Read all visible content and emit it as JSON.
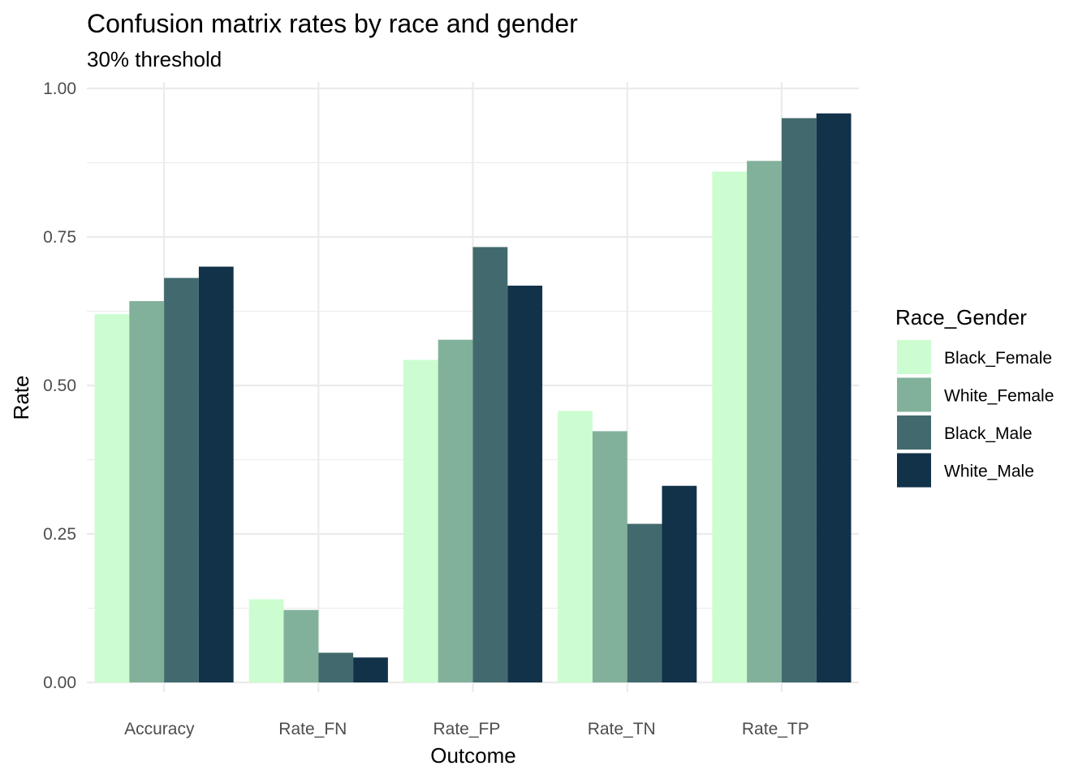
{
  "chart_data": {
    "type": "bar",
    "title": "Confusion matrix rates by race and gender",
    "subtitle": "30% threshold",
    "xlabel": "Outcome",
    "ylabel": "Rate",
    "ylim": [
      0,
      1
    ],
    "yticks": [
      "0.00",
      "0.25",
      "0.50",
      "0.75",
      "1.00"
    ],
    "ytick_values": [
      0,
      0.25,
      0.5,
      0.75,
      1.0
    ],
    "grid": true,
    "legend_title": "Race_Gender",
    "legend_position": "right",
    "categories": [
      "Accuracy",
      "Rate_FN",
      "Rate_FP",
      "Rate_TN",
      "Rate_TP"
    ],
    "series": [
      {
        "name": "Black_Female",
        "color": "#ccfdd0",
        "values": [
          0.62,
          0.14,
          0.543,
          0.457,
          0.86
        ]
      },
      {
        "name": "White_Female",
        "color": "#82b19b",
        "values": [
          0.642,
          0.122,
          0.577,
          0.423,
          0.878
        ]
      },
      {
        "name": "Black_Male",
        "color": "#426a6e",
        "values": [
          0.681,
          0.05,
          0.733,
          0.267,
          0.95
        ]
      },
      {
        "name": "White_Male",
        "color": "#12324a",
        "values": [
          0.7,
          0.042,
          0.668,
          0.331,
          0.958
        ]
      }
    ]
  }
}
